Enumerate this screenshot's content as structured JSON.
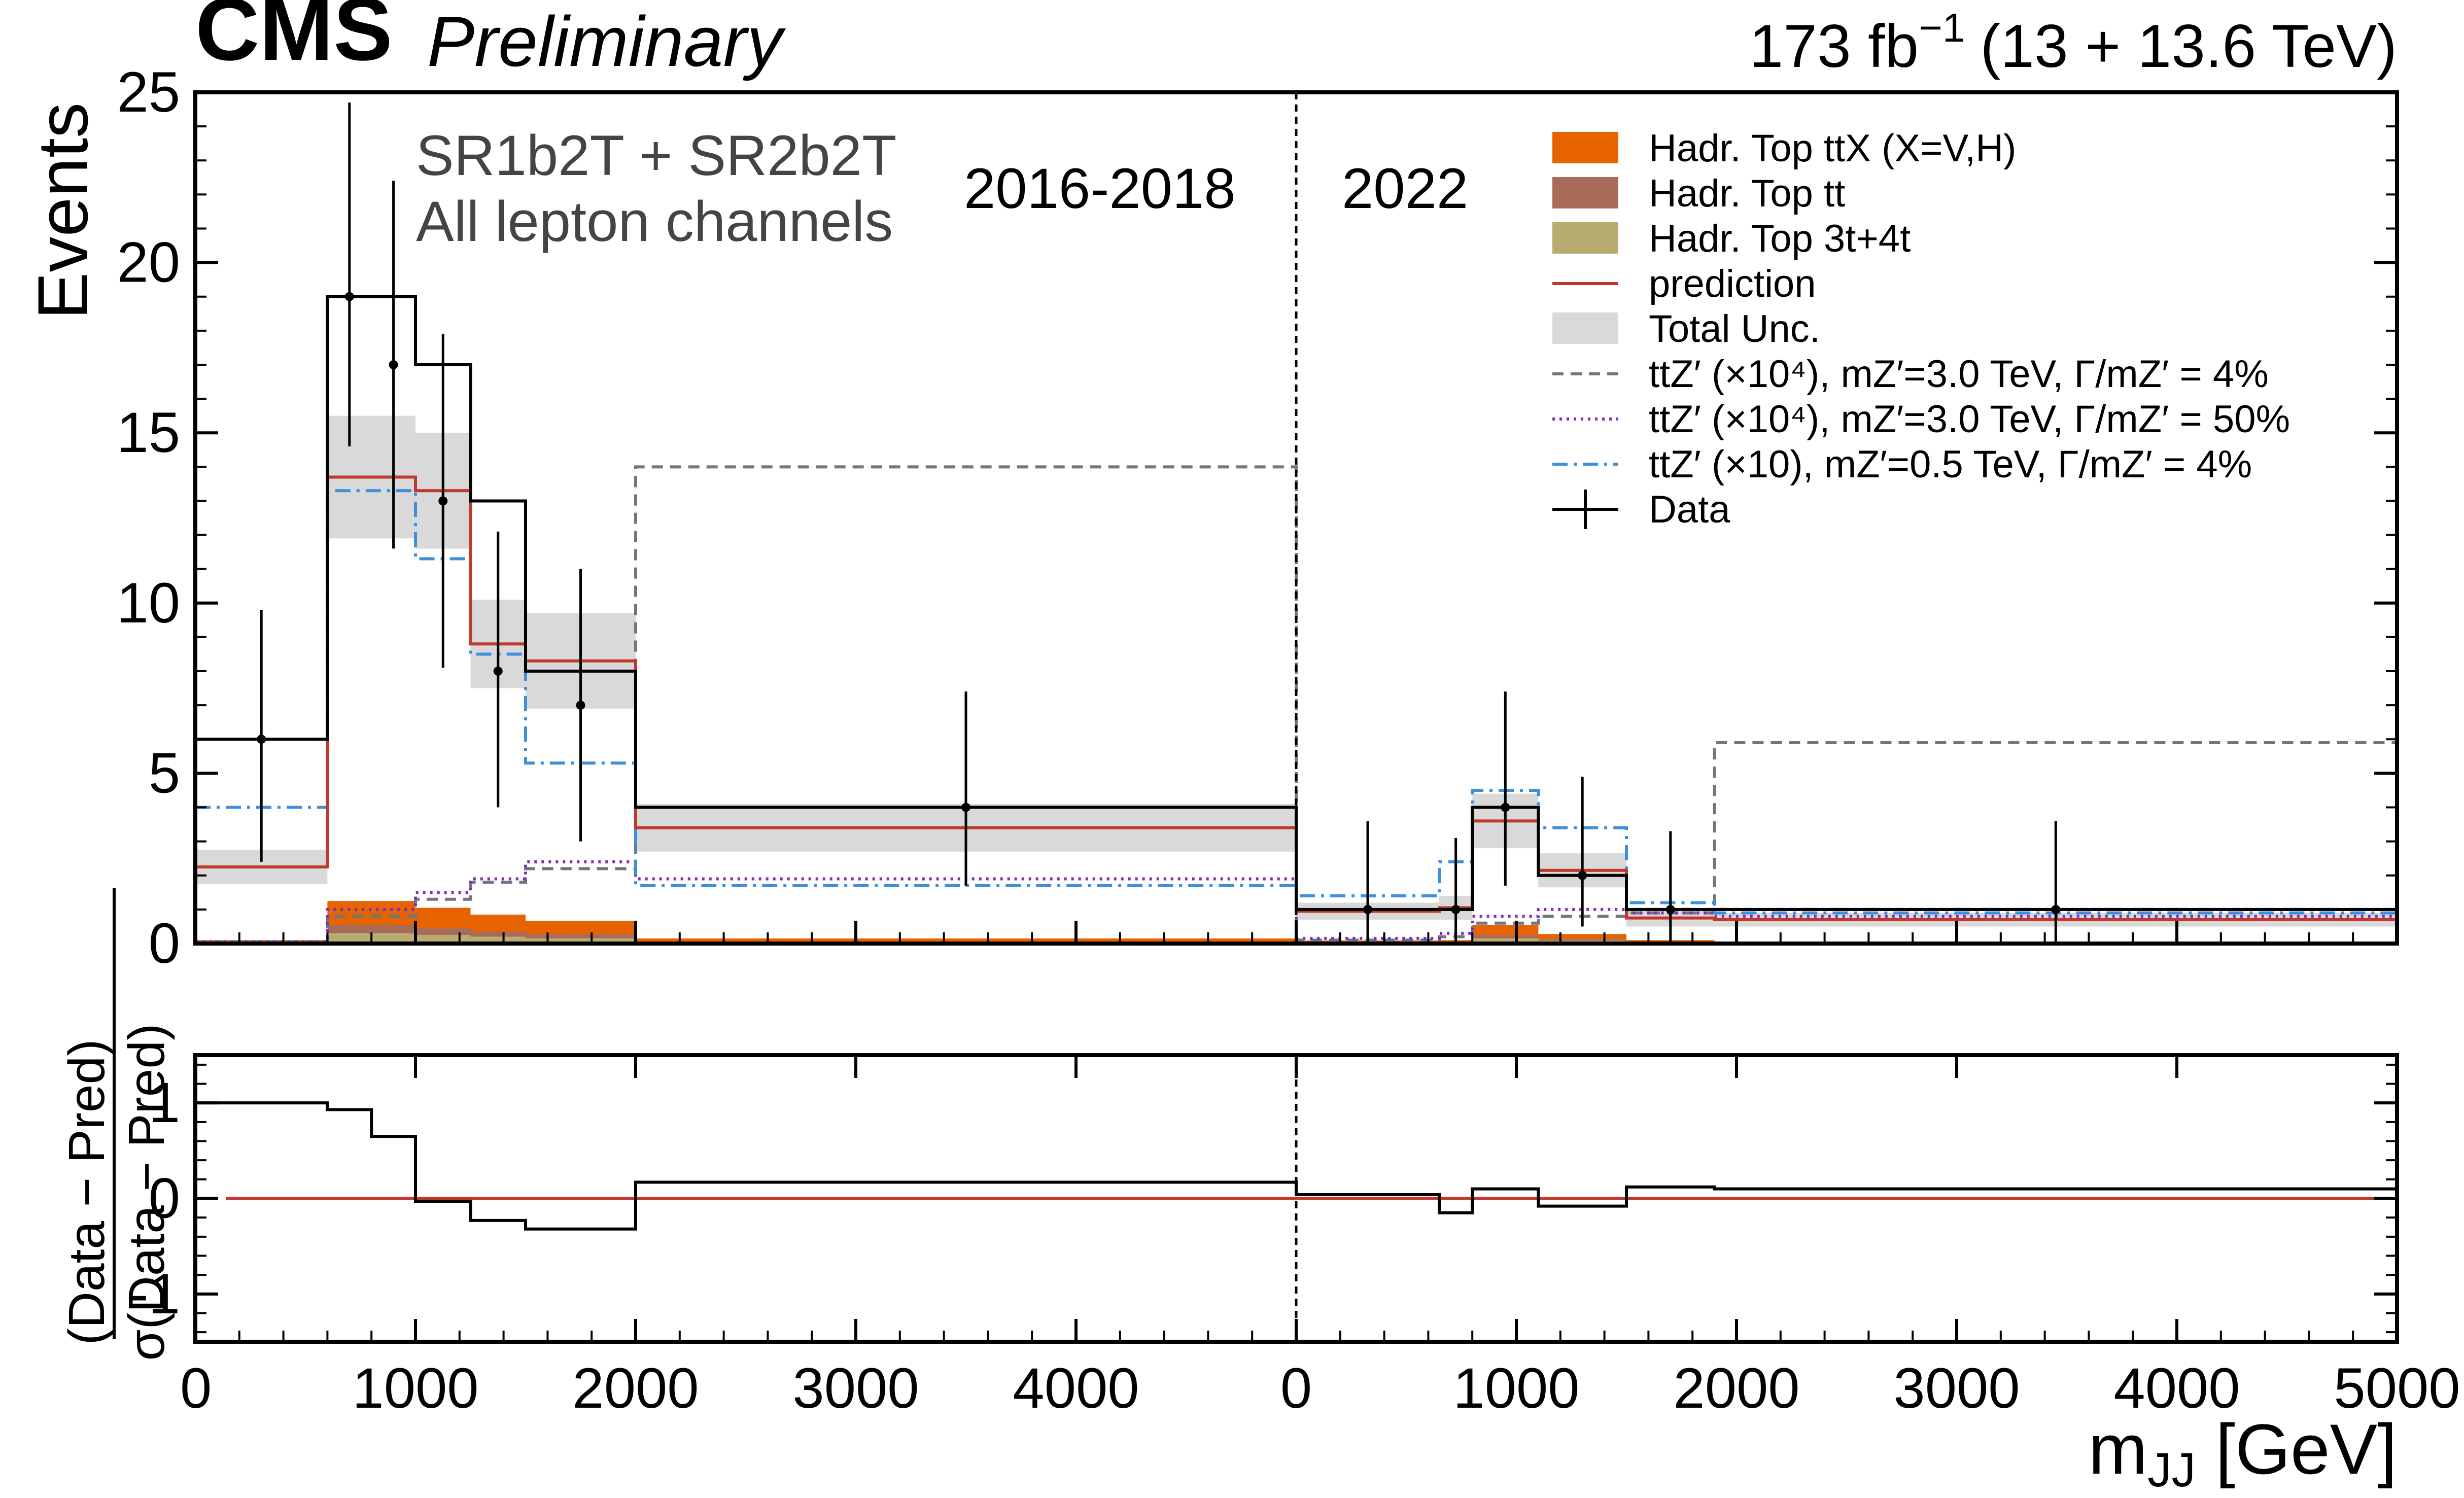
{
  "header": {
    "experiment": "CMS",
    "status": "Preliminary",
    "lumi_value": "173 fb",
    "lumi_exp": "−1",
    "energy": "(13 + 13.6 TeV)"
  },
  "annotations": {
    "region": "SR1b2T + SR2b2T",
    "channels": "All lepton channels",
    "period_left": "2016-2018",
    "period_right": "2022"
  },
  "legend": [
    {
      "key": "ttx",
      "label": "Hadr. Top ttX (X=V,H)",
      "style": "fill",
      "color": "#e76300"
    },
    {
      "key": "tt",
      "label": "Hadr. Top tt",
      "style": "fill",
      "color": "#a96b59"
    },
    {
      "key": "t34",
      "label": "Hadr. Top 3t+4t",
      "style": "fill",
      "color": "#b9ac70"
    },
    {
      "key": "pred",
      "label": "prediction",
      "style": "line",
      "color": "#c0392b"
    },
    {
      "key": "unc",
      "label": "Total Unc.",
      "style": "fill",
      "color": "#d9d9d9"
    },
    {
      "key": "sig1",
      "label": "ttZ′ (×10⁴), mZ′=3.0 TeV, Γ/mZ′ = 4%",
      "style": "dashed",
      "color": "#717581"
    },
    {
      "key": "sig2",
      "label": "ttZ′ (×10⁴), mZ′=3.0 TeV, Γ/mZ′ = 50%",
      "style": "dotted",
      "color": "#832db6"
    },
    {
      "key": "sig3",
      "label": "ttZ′ (×10), mZ′=0.5 TeV, Γ/mZ′ = 4%",
      "style": "dashdot",
      "color": "#3f90da"
    },
    {
      "key": "data",
      "label": "Data",
      "style": "marker",
      "color": "#000000"
    }
  ],
  "chart_data": {
    "type": "bar",
    "subtype": "stacked step histogram with ratio panel",
    "ylabel": "Events",
    "ylim": [
      0,
      25
    ],
    "yticks": [
      "0",
      "5",
      "10",
      "15",
      "20",
      "25"
    ],
    "ratio_ylabel_num": "(Data − Pred)",
    "ratio_ylabel_den": "σ(Data − Pred)",
    "ratio_ylim": [
      -1.5,
      1.5
    ],
    "ratio_yticks": [
      "-1",
      "0",
      "1"
    ],
    "xlabel": "m",
    "xlabel_sub": "JJ",
    "xlabel_unit": " [GeV]",
    "xticks": [
      "0",
      "1000",
      "2000",
      "3000",
      "4000",
      "0",
      "1000",
      "2000",
      "3000",
      "4000",
      "5000"
    ],
    "segment_boundary_x": 5000,
    "edges": [
      0,
      600,
      1000,
      1250,
      1500,
      2000,
      5000,
      5650,
      5800,
      6100,
      6500,
      6900,
      10000
    ],
    "x_axis_max": 10000,
    "prediction": [
      2.25,
      13.7,
      13.3,
      8.8,
      8.3,
      3.4,
      0.95,
      1.05,
      3.6,
      2.15,
      0.75,
      0.7
    ],
    "uncertainty": [
      0.5,
      1.8,
      1.7,
      1.3,
      1.4,
      0.7,
      0.25,
      0.35,
      0.8,
      0.5,
      0.25,
      0.2
    ],
    "ttx": [
      0.05,
      0.7,
      0.6,
      0.5,
      0.4,
      0.1,
      0.05,
      0.05,
      0.3,
      0.15,
      0.05,
      0.03
    ],
    "tt": [
      0.02,
      0.25,
      0.2,
      0.15,
      0.12,
      0.03,
      0.02,
      0.02,
      0.1,
      0.05,
      0.02,
      0.01
    ],
    "t34": [
      0.03,
      0.3,
      0.25,
      0.2,
      0.15,
      0.02,
      0.02,
      0.03,
      0.15,
      0.08,
      0.03,
      0.01
    ],
    "data_step": [
      6,
      19,
      17,
      13,
      8,
      4,
      1,
      1,
      4,
      2,
      1,
      1
    ],
    "data_points": [
      {
        "x": 300,
        "y": 6,
        "ylo": 2.4,
        "yhi": 9.8
      },
      {
        "x": 700,
        "y": 19,
        "ylo": 14.6,
        "yhi": 24.7
      },
      {
        "x": 900,
        "y": 17,
        "ylo": 11.6,
        "yhi": 22.4
      },
      {
        "x": 1125,
        "y": 13,
        "ylo": 8.1,
        "yhi": 17.9
      },
      {
        "x": 1375,
        "y": 8,
        "ylo": 4.0,
        "yhi": 12.1
      },
      {
        "x": 1750,
        "y": 7,
        "ylo": 3.0,
        "yhi": 11.0
      },
      {
        "x": 3500,
        "y": 4,
        "ylo": 1.7,
        "yhi": 7.4
      },
      {
        "x": 5325,
        "y": 1,
        "ylo": 0,
        "yhi": 3.6
      },
      {
        "x": 5725,
        "y": 1,
        "ylo": 0,
        "yhi": 3.1
      },
      {
        "x": 5950,
        "y": 4,
        "ylo": 1.7,
        "yhi": 7.4
      },
      {
        "x": 6300,
        "y": 2,
        "ylo": 0.5,
        "yhi": 4.9
      },
      {
        "x": 6700,
        "y": 1,
        "ylo": 0,
        "yhi": 3.3
      },
      {
        "x": 8450,
        "y": 1,
        "ylo": 0,
        "yhi": 3.6
      }
    ],
    "sig1_edges": [
      0,
      600,
      1000,
      1250,
      1500,
      2000,
      5000,
      5650,
      5800,
      6100,
      6500,
      6900,
      10000
    ],
    "sig1": [
      0.05,
      0.8,
      1.3,
      1.8,
      2.2,
      14.0,
      0.1,
      0.2,
      0.6,
      0.8,
      0.9,
      5.9
    ],
    "sig2_edges": [
      0,
      600,
      1000,
      1250,
      1500,
      2000,
      5000,
      5650,
      5800,
      6100,
      6500,
      6900,
      10000
    ],
    "sig2": [
      0.05,
      1.0,
      1.5,
      1.9,
      2.4,
      1.9,
      0.15,
      0.3,
      0.8,
      1.0,
      0.9,
      0.8
    ],
    "sig3_edges": [
      0,
      600,
      1000,
      1250,
      1500,
      2000,
      5000,
      5650,
      5800,
      6100,
      6500,
      6900,
      10000
    ],
    "sig3": [
      4.0,
      13.3,
      11.3,
      8.5,
      5.3,
      1.7,
      1.4,
      2.4,
      4.5,
      3.4,
      1.2,
      0.9
    ],
    "ratio_edges": [
      0,
      600,
      800,
      1000,
      1250,
      1500,
      2000,
      5000,
      5650,
      5800,
      6100,
      6500,
      6900,
      10000
    ],
    "ratio": [
      1.0,
      0.93,
      0.65,
      -0.03,
      -0.23,
      -0.32,
      0.17,
      0.04,
      -0.15,
      0.1,
      -0.08,
      0.12,
      0.1
    ],
    "ratio_zero_line": 0
  }
}
